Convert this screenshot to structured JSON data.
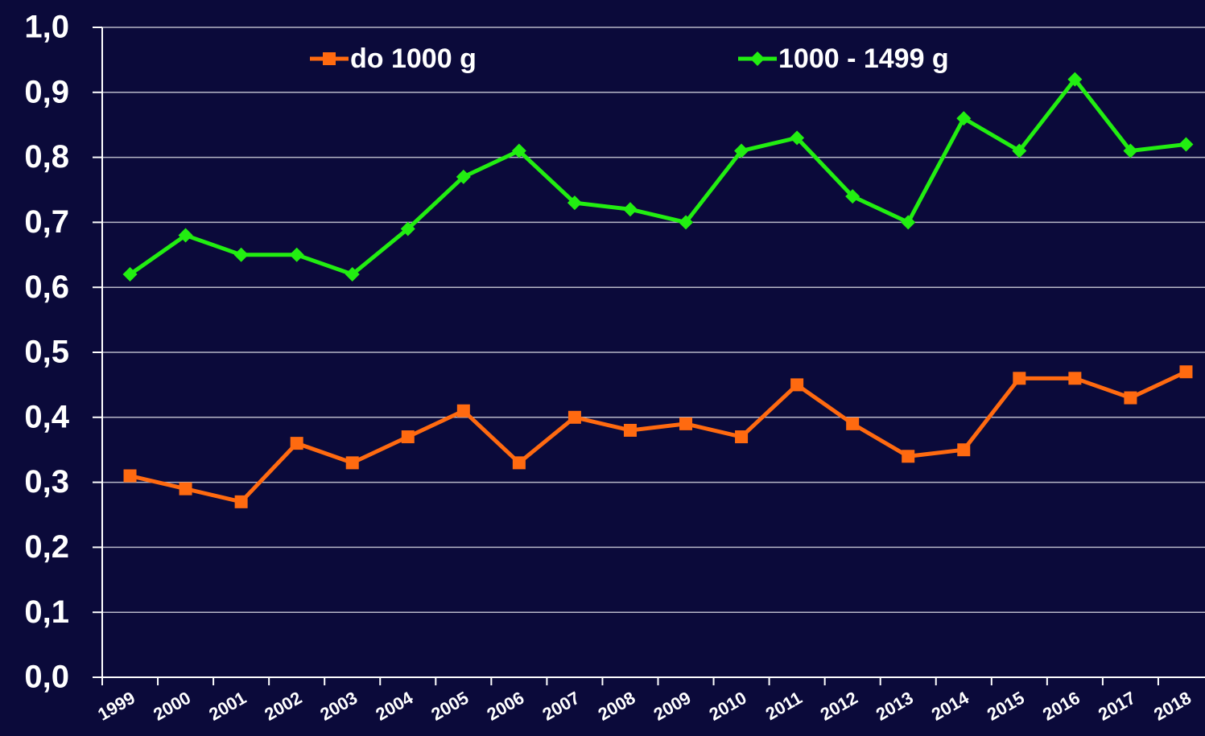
{
  "chart_data": {
    "type": "line",
    "categories": [
      "1999",
      "2000",
      "2001",
      "2002",
      "2003",
      "2004",
      "2005",
      "2006",
      "2007",
      "2008",
      "2009",
      "2010",
      "2011",
      "2012",
      "2013",
      "2014",
      "2015",
      "2016",
      "2017",
      "2018"
    ],
    "series": [
      {
        "name": "do 1000 g",
        "color": "#ff6a10",
        "marker": "square",
        "values": [
          0.31,
          0.29,
          0.27,
          0.36,
          0.33,
          0.37,
          0.41,
          0.33,
          0.4,
          0.38,
          0.39,
          0.37,
          0.45,
          0.39,
          0.34,
          0.35,
          0.46,
          0.46,
          0.43,
          0.47
        ]
      },
      {
        "name": "1000 - 1499 g",
        "color": "#22ee11",
        "marker": "diamond",
        "values": [
          0.62,
          0.68,
          0.65,
          0.65,
          0.62,
          0.69,
          0.77,
          0.81,
          0.73,
          0.72,
          0.7,
          0.81,
          0.83,
          0.74,
          0.7,
          0.86,
          0.81,
          0.92,
          0.81,
          0.82
        ]
      }
    ],
    "ylim": [
      0,
      1
    ],
    "yticks": [
      {
        "value": 0,
        "label": "0,0"
      },
      {
        "value": 0.1,
        "label": "0,1"
      },
      {
        "value": 0.2,
        "label": "0,2"
      },
      {
        "value": 0.3,
        "label": "0,3"
      },
      {
        "value": 0.4,
        "label": "0,4"
      },
      {
        "value": 0.5,
        "label": "0,5"
      },
      {
        "value": 0.6,
        "label": "0,6"
      },
      {
        "value": 0.7,
        "label": "0,7"
      },
      {
        "value": 0.8,
        "label": "0,8"
      },
      {
        "value": 0.9,
        "label": "0,9"
      },
      {
        "value": 1,
        "label": "1,0"
      }
    ],
    "grid": true,
    "legend": "top"
  }
}
